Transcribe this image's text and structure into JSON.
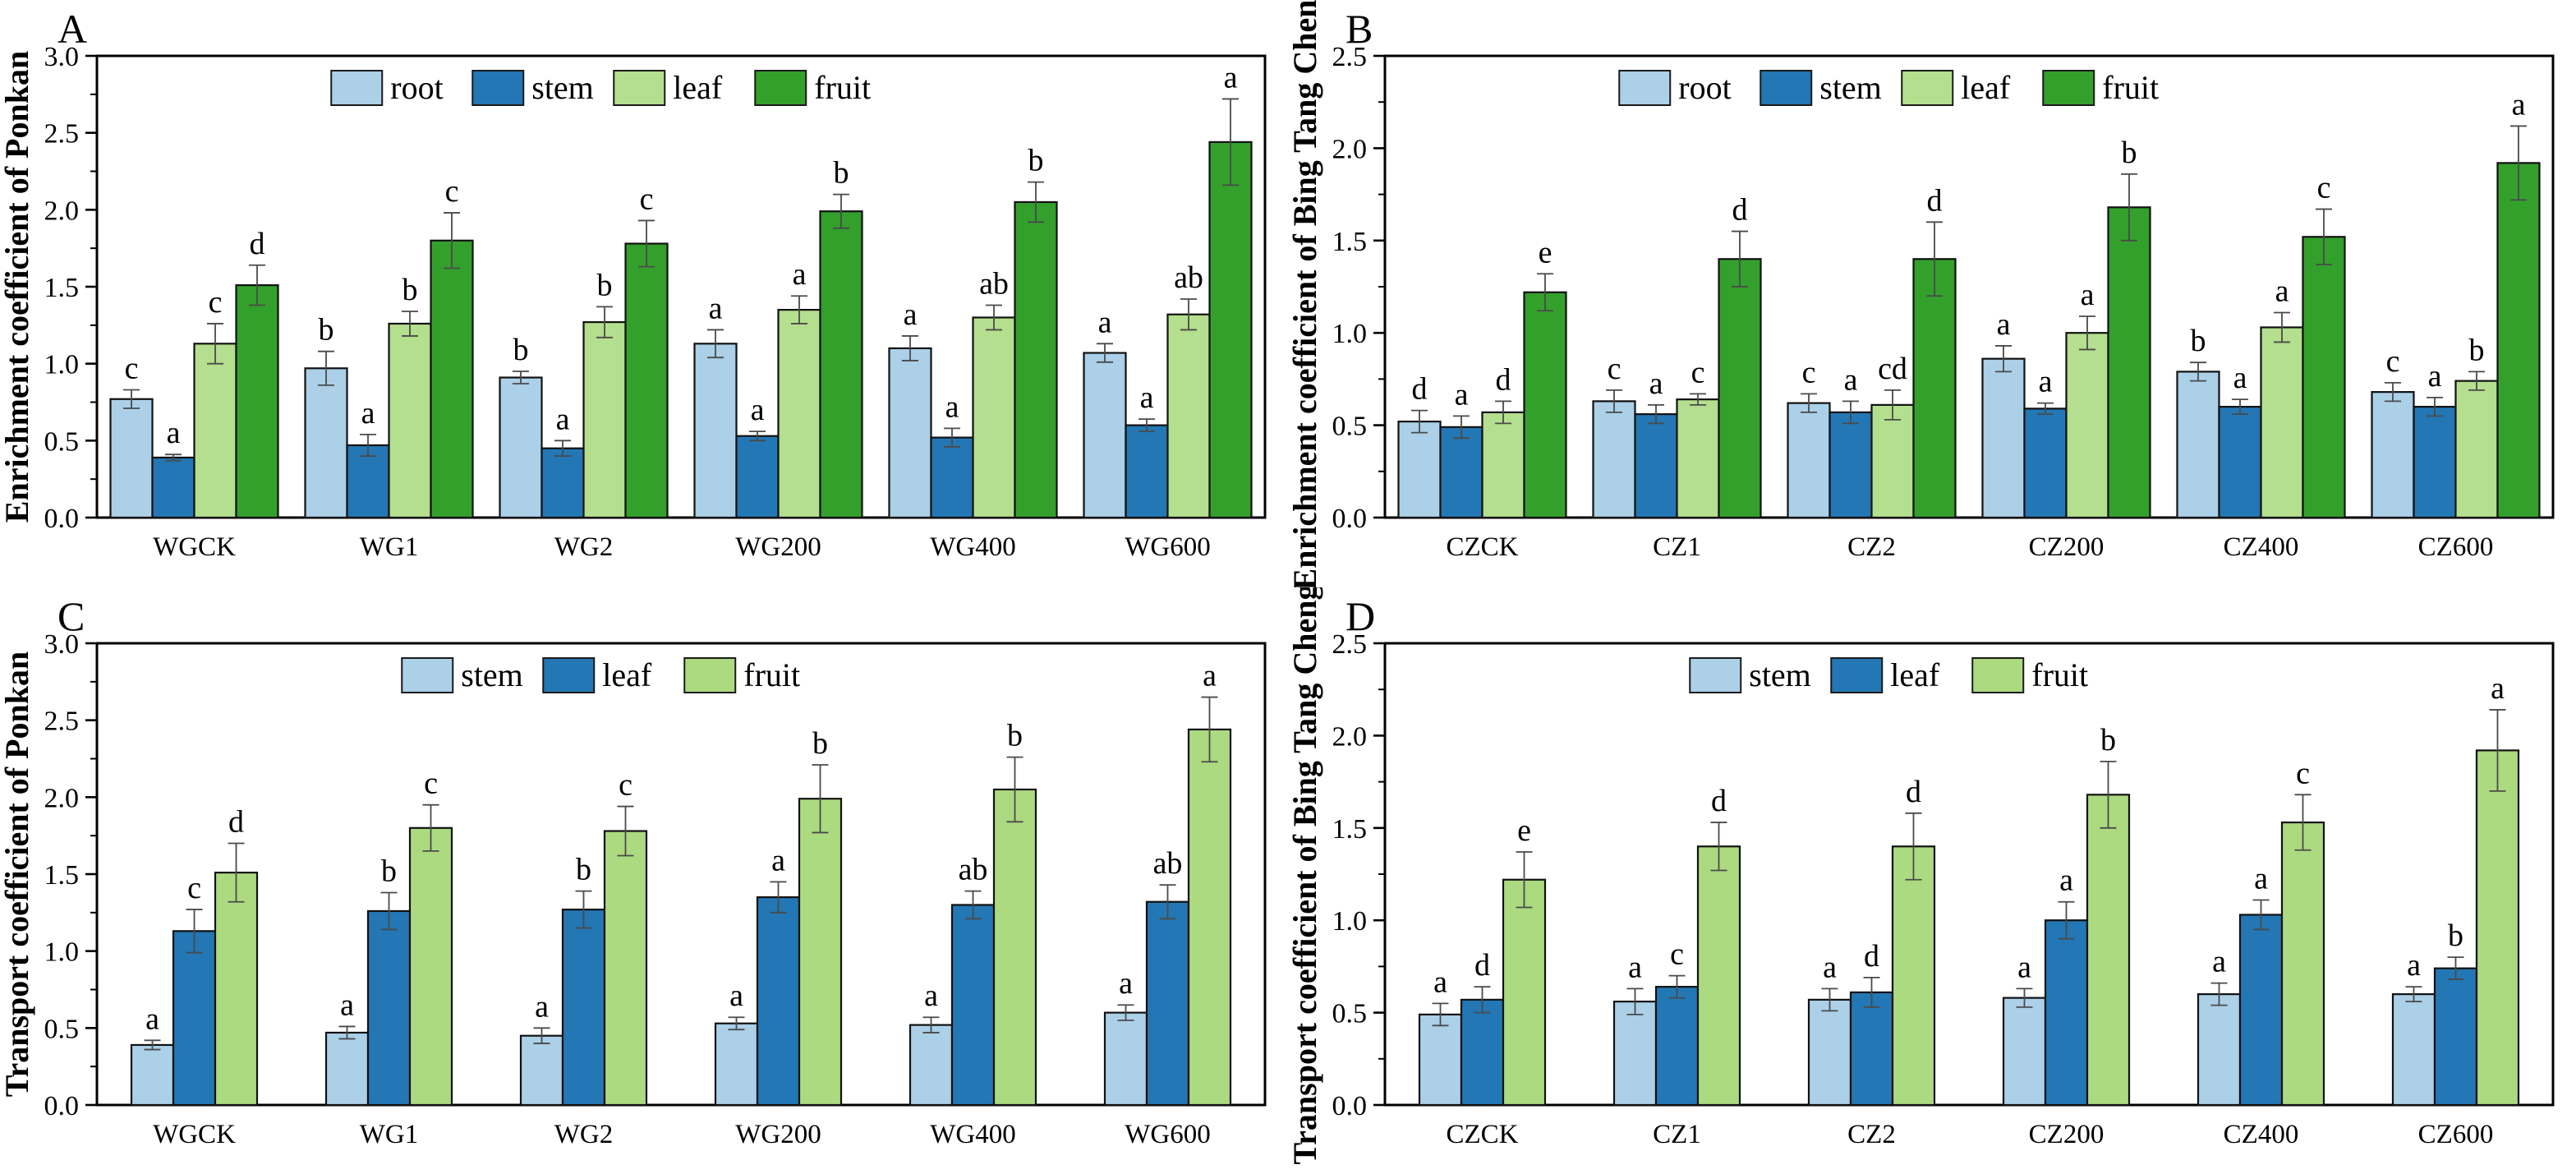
{
  "figure": {
    "background": "#ffffff",
    "axis_color": "#000000",
    "error_bar_color": "#4a4a4a",
    "bar_border_color": "#111111",
    "letter_color": "#000000"
  },
  "chart_data": [
    {
      "type": "bar",
      "label": "A",
      "ylabel": "Enrichment coefficient of Ponkan",
      "ylim": [
        0.0,
        3.0
      ],
      "ytick_step": 0.5,
      "yminor_step": 0.25,
      "grid": false,
      "legend_position": "top-center-inside",
      "categories": [
        "WGCK",
        "WG1",
        "WG2",
        "WG200",
        "WG400",
        "WG600"
      ],
      "series": [
        {
          "name": "root",
          "color": "#ABD0E8",
          "values": [
            0.77,
            0.97,
            0.91,
            1.13,
            1.1,
            1.07
          ],
          "errors": [
            0.06,
            0.11,
            0.04,
            0.09,
            0.08,
            0.06
          ],
          "letters": [
            "c",
            "b",
            "b",
            "a",
            "a",
            "a"
          ]
        },
        {
          "name": "stem",
          "color": "#2377B4",
          "values": [
            0.39,
            0.47,
            0.45,
            0.53,
            0.52,
            0.6
          ],
          "errors": [
            0.02,
            0.07,
            0.05,
            0.03,
            0.06,
            0.04
          ],
          "letters": [
            "a",
            "a",
            "a",
            "a",
            "a",
            "a"
          ]
        },
        {
          "name": "leaf",
          "color": "#B4DF8E",
          "values": [
            1.13,
            1.26,
            1.27,
            1.35,
            1.3,
            1.32
          ],
          "errors": [
            0.13,
            0.08,
            0.1,
            0.09,
            0.08,
            0.1
          ],
          "letters": [
            "c",
            "b",
            "b",
            "a",
            "ab",
            "ab"
          ]
        },
        {
          "name": "fruit",
          "color": "#33A02C",
          "values": [
            1.51,
            1.8,
            1.78,
            1.99,
            2.05,
            2.44
          ],
          "errors": [
            0.13,
            0.18,
            0.15,
            0.11,
            0.13,
            0.28
          ],
          "letters": [
            "d",
            "c",
            "c",
            "b",
            "b",
            "a"
          ]
        }
      ]
    },
    {
      "type": "bar",
      "label": "B",
      "ylabel": "Enrichment coefficient of Bing Tang Cheng",
      "ylim": [
        0.0,
        2.5
      ],
      "ytick_step": 0.5,
      "yminor_step": 0.25,
      "grid": false,
      "legend_position": "top-center-inside",
      "categories": [
        "CZCK",
        "CZ1",
        "CZ2",
        "CZ200",
        "CZ400",
        "CZ600"
      ],
      "series": [
        {
          "name": "root",
          "color": "#ABD0E8",
          "values": [
            0.52,
            0.63,
            0.62,
            0.86,
            0.79,
            0.68
          ],
          "errors": [
            0.06,
            0.06,
            0.05,
            0.07,
            0.05,
            0.05
          ],
          "letters": [
            "d",
            "c",
            "c",
            "a",
            "b",
            "c"
          ]
        },
        {
          "name": "stem",
          "color": "#2377B4",
          "values": [
            0.49,
            0.56,
            0.57,
            0.59,
            0.6,
            0.6
          ],
          "errors": [
            0.06,
            0.05,
            0.06,
            0.03,
            0.04,
            0.05
          ],
          "letters": [
            "a",
            "a",
            "a",
            "a",
            "a",
            "a"
          ]
        },
        {
          "name": "leaf",
          "color": "#B4DF8E",
          "values": [
            0.57,
            0.64,
            0.61,
            1.0,
            1.03,
            0.74
          ],
          "errors": [
            0.06,
            0.03,
            0.08,
            0.09,
            0.08,
            0.05
          ],
          "letters": [
            "d",
            "c",
            "cd",
            "a",
            "a",
            "b"
          ]
        },
        {
          "name": "fruit",
          "color": "#33A02C",
          "values": [
            1.22,
            1.4,
            1.4,
            1.68,
            1.52,
            1.92
          ],
          "errors": [
            0.1,
            0.15,
            0.2,
            0.18,
            0.15,
            0.2
          ],
          "letters": [
            "e",
            "d",
            "d",
            "b",
            "c",
            "a"
          ]
        }
      ]
    },
    {
      "type": "bar",
      "label": "C",
      "ylabel": "Transport coefficient of Ponkan",
      "ylim": [
        0.0,
        3.0
      ],
      "ytick_step": 0.5,
      "yminor_step": 0.25,
      "grid": false,
      "legend_position": "top-center-inside",
      "categories": [
        "WGCK",
        "WG1",
        "WG2",
        "WG200",
        "WG400",
        "WG600"
      ],
      "series": [
        {
          "name": "stem",
          "color": "#ABD0E8",
          "values": [
            0.39,
            0.47,
            0.45,
            0.53,
            0.52,
            0.6
          ],
          "errors": [
            0.03,
            0.04,
            0.05,
            0.04,
            0.05,
            0.05
          ],
          "letters": [
            "a",
            "a",
            "a",
            "a",
            "a",
            "a"
          ]
        },
        {
          "name": "leaf",
          "color": "#2377B4",
          "values": [
            1.13,
            1.26,
            1.27,
            1.35,
            1.3,
            1.32
          ],
          "errors": [
            0.14,
            0.12,
            0.12,
            0.1,
            0.09,
            0.11
          ],
          "letters": [
            "c",
            "b",
            "b",
            "a",
            "ab",
            "ab"
          ]
        },
        {
          "name": "fruit",
          "color": "#ACDA80",
          "values": [
            1.51,
            1.8,
            1.78,
            1.99,
            2.05,
            2.44
          ],
          "errors": [
            0.19,
            0.15,
            0.16,
            0.22,
            0.21,
            0.21
          ],
          "letters": [
            "d",
            "c",
            "c",
            "b",
            "b",
            "a"
          ]
        }
      ]
    },
    {
      "type": "bar",
      "label": "D",
      "ylabel": "Transport coefficient of Bing Tang Cheng",
      "ylim": [
        0.0,
        2.5
      ],
      "ytick_step": 0.5,
      "yminor_step": 0.25,
      "grid": false,
      "legend_position": "top-center-inside",
      "categories": [
        "CZCK",
        "CZ1",
        "CZ2",
        "CZ200",
        "CZ400",
        "CZ600"
      ],
      "series": [
        {
          "name": "stem",
          "color": "#ABD0E8",
          "values": [
            0.49,
            0.56,
            0.57,
            0.58,
            0.6,
            0.6
          ],
          "errors": [
            0.06,
            0.07,
            0.06,
            0.05,
            0.06,
            0.04
          ],
          "letters": [
            "a",
            "a",
            "a",
            "a",
            "a",
            "a"
          ]
        },
        {
          "name": "leaf",
          "color": "#2377B4",
          "values": [
            0.57,
            0.64,
            0.61,
            1.0,
            1.03,
            0.74
          ],
          "errors": [
            0.07,
            0.06,
            0.08,
            0.1,
            0.08,
            0.06
          ],
          "letters": [
            "d",
            "c",
            "d",
            "a",
            "a",
            "b"
          ]
        },
        {
          "name": "fruit",
          "color": "#ACDA80",
          "values": [
            1.22,
            1.4,
            1.4,
            1.68,
            1.53,
            1.92
          ],
          "errors": [
            0.15,
            0.13,
            0.18,
            0.18,
            0.15,
            0.22
          ],
          "letters": [
            "e",
            "d",
            "d",
            "b",
            "c",
            "a"
          ]
        }
      ]
    }
  ]
}
